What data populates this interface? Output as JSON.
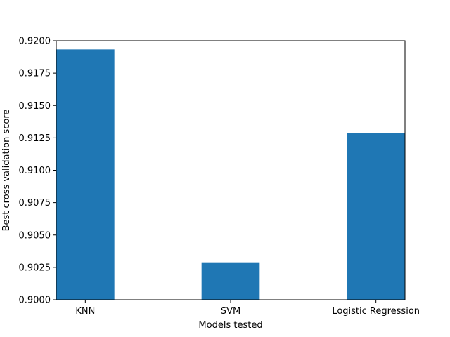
{
  "chart_data": {
    "type": "bar",
    "title": "",
    "xlabel": "Models tested",
    "ylabel": "Best cross validation score",
    "categories": [
      "KNN",
      "SVM",
      "Logistic Regression"
    ],
    "values": [
      0.91933,
      0.90289,
      0.91289
    ],
    "ylim": [
      0.9,
      0.92
    ],
    "yticks": [
      "0.9000",
      "0.9025",
      "0.9050",
      "0.9075",
      "0.9100",
      "0.9125",
      "0.9150",
      "0.9175",
      "0.9200"
    ],
    "grid": false,
    "legend": "none",
    "bar_color": "#1f77b4"
  }
}
